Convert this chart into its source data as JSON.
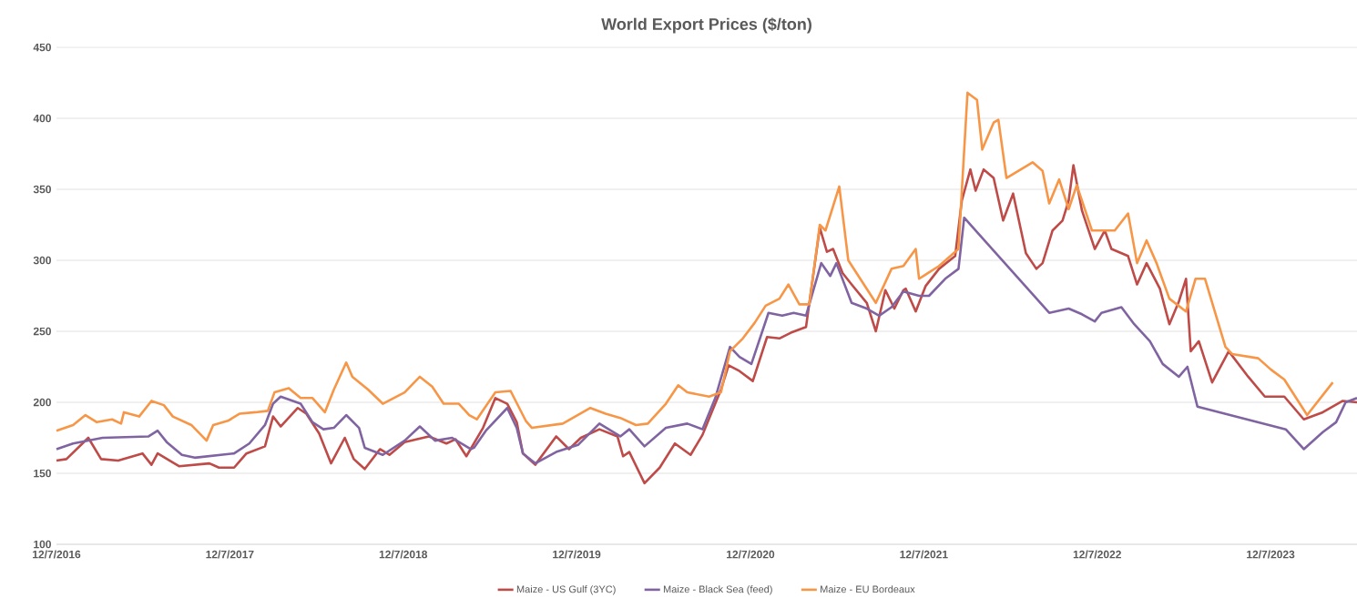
{
  "chart_data": {
    "type": "line",
    "title": "World Export Prices ($/ton)",
    "xlim": [
      "2016-12-07",
      "2024-06-06"
    ],
    "xticks": [
      {
        "value": "2016-12-07",
        "label": "12/7/2016"
      },
      {
        "value": "2017-12-07",
        "label": "12/7/2017"
      },
      {
        "value": "2018-12-07",
        "label": "12/7/2018"
      },
      {
        "value": "2019-12-07",
        "label": "12/7/2019"
      },
      {
        "value": "2020-12-07",
        "label": "12/7/2020"
      },
      {
        "value": "2021-12-07",
        "label": "12/7/2021"
      },
      {
        "value": "2022-12-07",
        "label": "12/7/2022"
      },
      {
        "value": "2023-12-07",
        "label": "12/7/2023"
      }
    ],
    "ylim": [
      100,
      450
    ],
    "yticks": [
      100,
      150,
      200,
      250,
      300,
      350,
      400,
      450
    ],
    "grid": "y",
    "legend": "bottom",
    "marker": "none",
    "line_style": "solid",
    "series": [
      {
        "name": "Maize - US Gulf (3YC)",
        "color": "#be4b48",
        "x": [
          "2016-12-07",
          "2016-12-28",
          "2017-02-12",
          "2017-03-11",
          "2017-04-16",
          "2017-06-06",
          "2017-06-25",
          "2017-07-08",
          "2017-08-22",
          "2017-10-25",
          "2017-11-14",
          "2017-12-16",
          "2018-01-11",
          "2018-02-19",
          "2018-03-08",
          "2018-03-24",
          "2018-04-29",
          "2018-05-17",
          "2018-06-13",
          "2018-07-08",
          "2018-08-06",
          "2018-08-25",
          "2018-09-17",
          "2018-10-19",
          "2018-11-08",
          "2018-12-10",
          "2019-01-30",
          "2019-03-08",
          "2019-03-27",
          "2019-04-19",
          "2019-05-24",
          "2019-06-19",
          "2019-07-14",
          "2019-08-03",
          "2019-08-16",
          "2019-09-11",
          "2019-10-25",
          "2019-11-21",
          "2019-12-16",
          "2020-01-24",
          "2020-03-02",
          "2020-03-14",
          "2020-03-27",
          "2020-04-28",
          "2020-05-30",
          "2020-07-01",
          "2020-08-03",
          "2020-08-28",
          "2020-10-06",
          "2020-10-22",
          "2020-11-14",
          "2020-12-12",
          "2021-01-11",
          "2021-02-06",
          "2021-03-02",
          "2021-04-03",
          "2021-05-02",
          "2021-05-17",
          "2021-05-30",
          "2021-06-19",
          "2021-07-08",
          "2021-08-09",
          "2021-08-28",
          "2021-09-17",
          "2021-10-06",
          "2021-10-25",
          "2021-10-30",
          "2021-11-20",
          "2021-12-11",
          "2022-01-08",
          "2022-02-11",
          "2022-02-25",
          "2022-03-15",
          "2022-03-26",
          "2022-04-12",
          "2022-05-03",
          "2022-05-23",
          "2022-06-13",
          "2022-07-10",
          "2022-08-01",
          "2022-08-14",
          "2022-09-04",
          "2022-09-25",
          "2022-10-08",
          "2022-10-18",
          "2022-11-05",
          "2022-12-02",
          "2022-12-23",
          "2023-01-06",
          "2023-02-10",
          "2023-03-01",
          "2023-03-21",
          "2023-04-18",
          "2023-05-08",
          "2023-05-28",
          "2023-06-12",
          "2023-06-22",
          "2023-07-09",
          "2023-08-06",
          "2023-09-10",
          "2023-10-21",
          "2023-11-25",
          "2024-01-05",
          "2024-02-15",
          "2024-03-26",
          "2024-05-07",
          "2024-06-06"
        ],
        "values": [
          159,
          160,
          175,
          160,
          159,
          164,
          156,
          164,
          155,
          157,
          154,
          154,
          164,
          169,
          190,
          183,
          196,
          192,
          178,
          157,
          175,
          160,
          153,
          167,
          163,
          172,
          176,
          171,
          174,
          162,
          182,
          203,
          199,
          186,
          164,
          156,
          176,
          167,
          175,
          181,
          176,
          162,
          165,
          143,
          154,
          171,
          163,
          177,
          209,
          226,
          222,
          215,
          246,
          245,
          249,
          253,
          323,
          306,
          308,
          291,
          283,
          270,
          250,
          279,
          266,
          279,
          280,
          264,
          282,
          294,
          303,
          342,
          364,
          349,
          364,
          358,
          328,
          347,
          305,
          294,
          298,
          321,
          328,
          342,
          367,
          335,
          308,
          321,
          308,
          303,
          283,
          298,
          280,
          255,
          271,
          287,
          236,
          243,
          214,
          236,
          218,
          204,
          204,
          188,
          193,
          201,
          200
        ]
      },
      {
        "name": "Maize - Black Sea (feed)",
        "color": "#8064a2",
        "x": [
          "2016-12-07",
          "2017-01-11",
          "2017-03-14",
          "2017-06-19",
          "2017-07-08",
          "2017-07-27",
          "2017-08-28",
          "2017-09-24",
          "2017-12-16",
          "2018-01-17",
          "2018-02-19",
          "2018-03-08",
          "2018-03-24",
          "2018-05-05",
          "2018-05-30",
          "2018-06-22",
          "2018-07-14",
          "2018-08-09",
          "2018-09-05",
          "2018-09-17",
          "2018-10-25",
          "2018-12-10",
          "2019-01-11",
          "2019-02-12",
          "2019-03-20",
          "2019-04-28",
          "2019-05-05",
          "2019-05-30",
          "2019-07-14",
          "2019-08-03",
          "2019-08-16",
          "2019-09-11",
          "2019-10-25",
          "2019-12-10",
          "2020-01-24",
          "2020-03-08",
          "2020-03-27",
          "2020-04-28",
          "2020-06-12",
          "2020-07-27",
          "2020-08-28",
          "2020-09-24",
          "2020-10-25",
          "2020-11-14",
          "2020-12-09",
          "2021-01-14",
          "2021-02-12",
          "2021-03-08",
          "2021-04-03",
          "2021-05-05",
          "2021-05-24",
          "2021-06-06",
          "2021-07-08",
          "2021-08-09",
          "2021-09-04",
          "2021-09-30",
          "2021-10-25",
          "2021-11-27",
          "2021-12-18",
          "2022-01-21",
          "2022-02-18",
          "2022-03-02",
          "2022-08-28",
          "2022-10-08",
          "2022-11-05",
          "2022-12-02",
          "2022-12-16",
          "2023-01-27",
          "2023-02-23",
          "2023-03-28",
          "2023-04-24",
          "2023-05-28",
          "2023-06-15",
          "2023-07-06",
          "2024-01-08",
          "2024-02-15",
          "2024-03-26",
          "2024-04-23",
          "2024-05-13",
          "2024-06-06"
        ],
        "values": [
          167,
          171,
          175,
          176,
          180,
          172,
          163,
          161,
          164,
          171,
          184,
          199,
          204,
          199,
          186,
          181,
          182,
          191,
          182,
          168,
          163,
          173,
          183,
          173,
          175,
          167,
          168,
          180,
          196,
          182,
          164,
          157,
          165,
          170,
          185,
          176,
          181,
          169,
          182,
          185,
          181,
          203,
          239,
          232,
          227,
          263,
          261,
          263,
          261,
          298,
          289,
          298,
          270,
          266,
          261,
          267,
          278,
          275,
          275,
          287,
          294,
          330,
          263,
          266,
          262,
          257,
          263,
          267,
          255,
          243,
          227,
          218,
          225,
          197,
          181,
          167,
          179,
          186,
          200,
          203
        ]
      },
      {
        "name": "Maize - EU Bordeaux",
        "color": "#f79646",
        "x": [
          "2016-12-07",
          "2017-01-11",
          "2017-02-06",
          "2017-03-02",
          "2017-04-03",
          "2017-04-22",
          "2017-04-28",
          "2017-05-30",
          "2017-06-25",
          "2017-07-21",
          "2017-08-09",
          "2017-09-17",
          "2017-10-19",
          "2017-11-02",
          "2017-12-03",
          "2017-12-28",
          "2018-01-30",
          "2018-02-25",
          "2018-03-11",
          "2018-04-10",
          "2018-05-05",
          "2018-05-30",
          "2018-06-25",
          "2018-07-14",
          "2018-08-09",
          "2018-08-22",
          "2018-09-24",
          "2018-10-25",
          "2018-12-10",
          "2019-01-11",
          "2019-02-06",
          "2019-03-02",
          "2019-04-03",
          "2019-04-25",
          "2019-05-11",
          "2019-06-19",
          "2019-07-21",
          "2019-08-22",
          "2019-09-04",
          "2019-11-08",
          "2020-01-05",
          "2020-02-06",
          "2020-03-08",
          "2020-04-10",
          "2020-05-05",
          "2020-06-12",
          "2020-07-08",
          "2020-07-27",
          "2020-09-11",
          "2020-10-06",
          "2020-10-25",
          "2020-11-21",
          "2020-12-16",
          "2021-01-08",
          "2021-02-06",
          "2021-02-25",
          "2021-03-20",
          "2021-04-10",
          "2021-05-02",
          "2021-05-14",
          "2021-06-12",
          "2021-07-01",
          "2021-08-28",
          "2021-09-30",
          "2021-10-25",
          "2021-11-20",
          "2021-11-27",
          "2022-01-08",
          "2022-02-18",
          "2022-03-09",
          "2022-03-29",
          "2022-04-09",
          "2022-05-03",
          "2022-05-13",
          "2022-05-30",
          "2022-07-24",
          "2022-08-14",
          "2022-08-28",
          "2022-09-18",
          "2022-10-08",
          "2022-10-25",
          "2022-11-26",
          "2023-01-13",
          "2023-02-10",
          "2023-03-01",
          "2023-03-21",
          "2023-04-11",
          "2023-05-08",
          "2023-06-12",
          "2023-07-02",
          "2023-07-22",
          "2023-09-03",
          "2023-09-17",
          "2023-11-11",
          "2023-12-08",
          "2024-01-05",
          "2024-02-22",
          "2024-04-16"
        ],
        "values": [
          180,
          184,
          191,
          186,
          188,
          185,
          193,
          190,
          201,
          198,
          190,
          184,
          173,
          184,
          187,
          192,
          193,
          194,
          207,
          210,
          203,
          203,
          193,
          209,
          228,
          218,
          209,
          199,
          207,
          218,
          211,
          199,
          199,
          191,
          188,
          207,
          208,
          187,
          182,
          185,
          196,
          192,
          189,
          184,
          185,
          199,
          212,
          207,
          204,
          207,
          236,
          245,
          256,
          268,
          273,
          283,
          269,
          269,
          325,
          321,
          352,
          300,
          270,
          294,
          296,
          308,
          287,
          296,
          308,
          418,
          413,
          378,
          397,
          399,
          358,
          369,
          363,
          340,
          357,
          336,
          353,
          321,
          321,
          333,
          298,
          314,
          298,
          273,
          264,
          287,
          287,
          239,
          234,
          231,
          223,
          216,
          191,
          214
        ]
      }
    ]
  }
}
